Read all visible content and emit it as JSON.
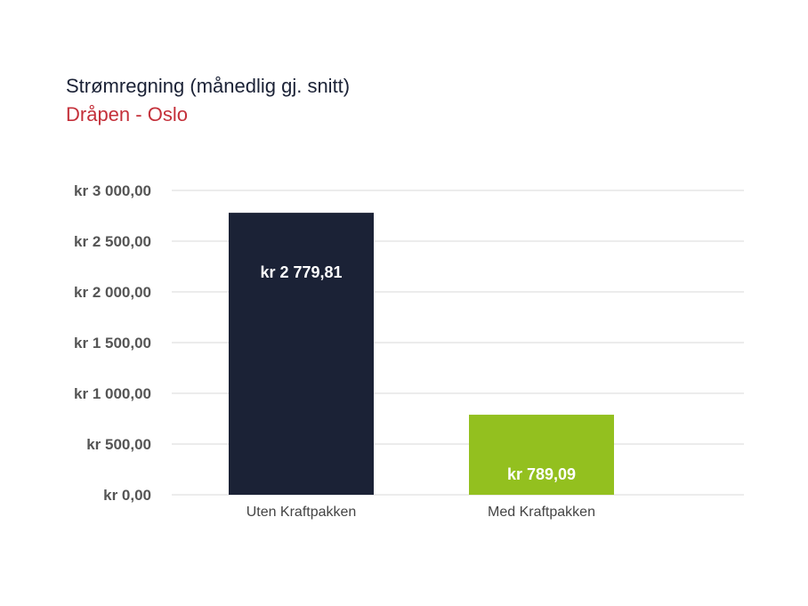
{
  "chart_data": {
    "type": "bar",
    "title": "Strømregning (månedlig gj. snitt)",
    "subtitle": "Dråpen - Oslo",
    "categories": [
      "Uten Kraftpakken",
      "Med Kraftpakken"
    ],
    "values": [
      2779.81,
      789.09
    ],
    "data_labels": [
      "kr 2 779,81",
      "kr 789,09"
    ],
    "bar_colors": [
      "#1b2236",
      "#93c01f"
    ],
    "ylim": [
      0,
      3000
    ],
    "yticks": [
      0,
      500,
      1000,
      1500,
      2000,
      2500,
      3000
    ],
    "ytick_labels": [
      "kr 0,00",
      "kr 500,00",
      "kr 1 000,00",
      "kr 1 500,00",
      "kr 2 000,00",
      "kr 2 500,00",
      "kr 3 000,00"
    ],
    "grid": true,
    "colors": {
      "title": "#1b2236",
      "subtitle": "#c4303a",
      "grid": "#d9d9d9"
    }
  }
}
